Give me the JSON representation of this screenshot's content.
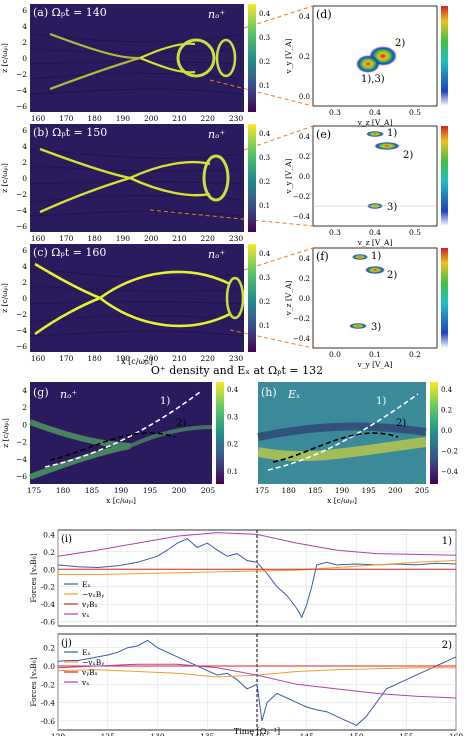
{
  "figure": {
    "density_panels": [
      {
        "label": "(a) Ωₚt = 140",
        "field": "nₒ⁺",
        "xlabel": "",
        "ylabel": "z [c/ωₚᵢ]",
        "xticks": [
          "160",
          "170",
          "180",
          "190",
          "200",
          "210",
          "220",
          "230"
        ],
        "yticks": [
          "6",
          "4",
          "2",
          "0",
          "−2",
          "−4",
          "−6"
        ],
        "cbar_ticks": [
          "0.4",
          "0.3",
          "0.2",
          "0.1"
        ]
      },
      {
        "label": "(b) Ωₚt = 150",
        "field": "nₒ⁺",
        "xlabel": "",
        "ylabel": "z [c/ωₚᵢ]",
        "xticks": [
          "160",
          "170",
          "180",
          "190",
          "200",
          "210",
          "220",
          "230"
        ],
        "yticks": [
          "6",
          "4",
          "2",
          "0",
          "−2",
          "−4",
          "−6"
        ],
        "cbar_ticks": [
          "0.4",
          "0.3",
          "0.2",
          "0.1"
        ]
      },
      {
        "label": "(c) Ωₚt = 160",
        "field": "nₒ⁺",
        "xlabel": "x [c/ωₚᵢ]",
        "ylabel": "z [c/ωₚᵢ]",
        "xticks": [
          "160",
          "170",
          "180",
          "190",
          "200",
          "210",
          "220",
          "230"
        ],
        "yticks": [
          "6",
          "4",
          "2",
          "0",
          "−2",
          "−4",
          "−6"
        ],
        "cbar_ticks": [
          "0.4",
          "0.3",
          "0.2",
          "0.1"
        ]
      }
    ],
    "velocity_panels": [
      {
        "label": "(d)",
        "xlabel": "v_z [V_A]",
        "ylabel": "v_y [V_A]",
        "xticks": [
          "0.3",
          "0.4",
          "0.5"
        ],
        "yticks": [
          "0.4",
          "0.2",
          "0.0"
        ],
        "annotations": [
          "2)",
          "1),3)"
        ]
      },
      {
        "label": "(e)",
        "xlabel": "v_z [V_A]",
        "ylabel": "v_y [V_A]",
        "xticks": [
          "0.3",
          "0.4",
          "0.5"
        ],
        "yticks": [
          "0.4",
          "0.2",
          "0.0",
          "−0.2",
          "−0.4"
        ],
        "annotations": [
          "1)",
          "2)",
          "3)"
        ]
      },
      {
        "label": "(f)",
        "xlabel": "v_y [V_A]",
        "ylabel": "v_z [V_A]",
        "xticks": [
          "0.0",
          "0.1",
          "0.2"
        ],
        "yticks": [
          "0.4",
          "0.2",
          "0.0",
          "−0.2",
          "−0.4"
        ],
        "annotations": [
          "1)",
          "2)",
          "3)"
        ]
      }
    ],
    "middle_title": "O⁺ density and Eₓ at Ωₚt = 132",
    "trajectory_panels": [
      {
        "label": "(g)",
        "field": "nₒ⁺",
        "xlabel": "x [c/ωₚᵢ]",
        "ylabel": "z [c/ωₚᵢ]",
        "xticks": [
          "175",
          "180",
          "185",
          "190",
          "195",
          "200",
          "205"
        ],
        "yticks": [
          "4",
          "2",
          "0",
          "−2",
          "−4",
          "−6"
        ],
        "cbar_ticks": [
          "0.4",
          "0.3",
          "0.2",
          "0.1"
        ],
        "paths": [
          "1)",
          "2)"
        ]
      },
      {
        "label": "(h)",
        "field": "Eₓ",
        "xlabel": "x [c/ωₚᵢ]",
        "ylabel": "",
        "xticks": [
          "175",
          "180",
          "185",
          "190",
          "195",
          "200",
          "205"
        ],
        "yticks": [],
        "cbar_ticks": [
          "0.4",
          "0.2",
          "0.0",
          "−0.2",
          "−0.4"
        ],
        "paths": [
          "1)",
          "2)"
        ]
      }
    ],
    "force_panels": [
      {
        "label": "(i)",
        "particle": "1)",
        "ylabel": "Forces [vₐB₀]"
      },
      {
        "label": "(j)",
        "particle": "2)",
        "ylabel": "Forces [vₐB₀]"
      }
    ],
    "force_legend": [
      "Eₓ",
      "−vₓBᵧ",
      "vᵧBₓ",
      "vₓ"
    ],
    "force_xlabel": "Time [Ωₚ⁻¹]"
  },
  "chart_data": [
    {
      "type": "line",
      "title": "(i) 1)",
      "xlabel": "Time [Ωp⁻¹]",
      "ylabel": "Forces [vA B0]",
      "xlim": [
        120,
        160
      ],
      "ylim": [
        -0.65,
        0.45
      ],
      "yticks": [
        0.4,
        0.2,
        0.0,
        -0.2,
        -0.4,
        -0.6
      ],
      "vline": 140,
      "grid": true,
      "legend": "lower-left",
      "series": [
        {
          "name": "Eₓ",
          "color": "#3b5ba8",
          "x": [
            120,
            122,
            124,
            126,
            128,
            130,
            131,
            132,
            133,
            134,
            135,
            136,
            137,
            138,
            139,
            140,
            141,
            142,
            143,
            144,
            144.5,
            145,
            145.5,
            146,
            147,
            148,
            150,
            152,
            154,
            156,
            158,
            160
          ],
          "y": [
            0.05,
            0.03,
            0.02,
            0.04,
            0.08,
            0.15,
            0.22,
            0.3,
            0.35,
            0.25,
            0.3,
            0.22,
            0.15,
            0.18,
            0.1,
            0.08,
            -0.05,
            -0.2,
            -0.3,
            -0.45,
            -0.55,
            -0.4,
            -0.2,
            0.05,
            0.08,
            0.05,
            0.06,
            0.05,
            0.06,
            0.05,
            0.07,
            0.06
          ]
        },
        {
          "name": "−vₓBᵧ",
          "color": "#f0a020",
          "x": [
            120,
            124,
            128,
            132,
            136,
            140,
            144,
            148,
            152,
            156,
            160
          ],
          "y": [
            -0.06,
            -0.06,
            -0.05,
            -0.04,
            -0.03,
            -0.02,
            -0.01,
            0.02,
            0.05,
            0.08,
            0.1
          ]
        },
        {
          "name": "vᵧBₓ",
          "color": "#e02020",
          "x": [
            120,
            130,
            140,
            150,
            160
          ],
          "y": [
            0.0,
            0.0,
            0.0,
            0.0,
            0.0
          ]
        },
        {
          "name": "vₓ",
          "color": "#b040b0",
          "x": [
            120,
            124,
            128,
            132,
            136,
            140,
            144,
            148,
            152,
            156,
            160
          ],
          "y": [
            0.15,
            0.22,
            0.3,
            0.38,
            0.42,
            0.4,
            0.3,
            0.22,
            0.18,
            0.17,
            0.16
          ]
        }
      ]
    },
    {
      "type": "line",
      "title": "(j) 2)",
      "xlabel": "Time [Ωp⁻¹]",
      "ylabel": "Forces [vA B0]",
      "xlim": [
        120,
        160
      ],
      "ylim": [
        -0.7,
        0.35
      ],
      "yticks": [
        0.2,
        0.0,
        -0.2,
        -0.4,
        -0.6
      ],
      "xticks": [
        120,
        125,
        130,
        135,
        140,
        145,
        150,
        155,
        160
      ],
      "vline": 140,
      "grid": true,
      "legend": "upper-left",
      "series": [
        {
          "name": "Eₓ",
          "color": "#3b5ba8",
          "x": [
            120,
            121,
            122,
            123,
            124,
            125,
            126,
            127,
            128,
            129,
            130,
            131,
            132,
            133,
            134,
            135,
            136,
            137,
            138,
            139,
            140,
            140.5,
            141,
            142,
            143,
            144,
            145,
            146,
            147,
            148,
            149,
            150,
            151,
            152,
            153,
            154,
            155,
            156,
            157,
            158,
            159,
            160
          ],
          "y": [
            0.05,
            0.06,
            0.06,
            0.08,
            0.1,
            0.12,
            0.15,
            0.2,
            0.22,
            0.28,
            0.2,
            0.15,
            0.1,
            0.05,
            0.0,
            -0.05,
            -0.1,
            -0.08,
            -0.15,
            -0.25,
            -0.2,
            -0.6,
            -0.4,
            -0.3,
            -0.35,
            -0.4,
            -0.45,
            -0.48,
            -0.5,
            -0.55,
            -0.6,
            -0.65,
            -0.55,
            -0.4,
            -0.25,
            -0.2,
            -0.15,
            -0.1,
            -0.05,
            0.0,
            0.05,
            0.1
          ]
        },
        {
          "name": "−vₓBᵧ",
          "color": "#f0a020",
          "x": [
            120,
            124,
            128,
            132,
            136,
            140,
            144,
            148,
            152,
            156,
            160
          ],
          "y": [
            -0.05,
            -0.04,
            -0.06,
            -0.08,
            -0.12,
            -0.1,
            -0.06,
            -0.04,
            -0.03,
            -0.02,
            -0.02
          ]
        },
        {
          "name": "vᵧBₓ",
          "color": "#e02020",
          "x": [
            120,
            130,
            140,
            150,
            160
          ],
          "y": [
            0.0,
            0.0,
            0.0,
            0.0,
            0.0
          ]
        },
        {
          "name": "vₓ",
          "color": "#b040b0",
          "x": [
            120,
            124,
            128,
            132,
            136,
            140,
            144,
            148,
            152,
            156,
            160
          ],
          "y": [
            -0.02,
            0.0,
            0.02,
            0.02,
            -0.02,
            -0.1,
            -0.2,
            -0.25,
            -0.3,
            -0.33,
            -0.35
          ]
        }
      ]
    }
  ]
}
